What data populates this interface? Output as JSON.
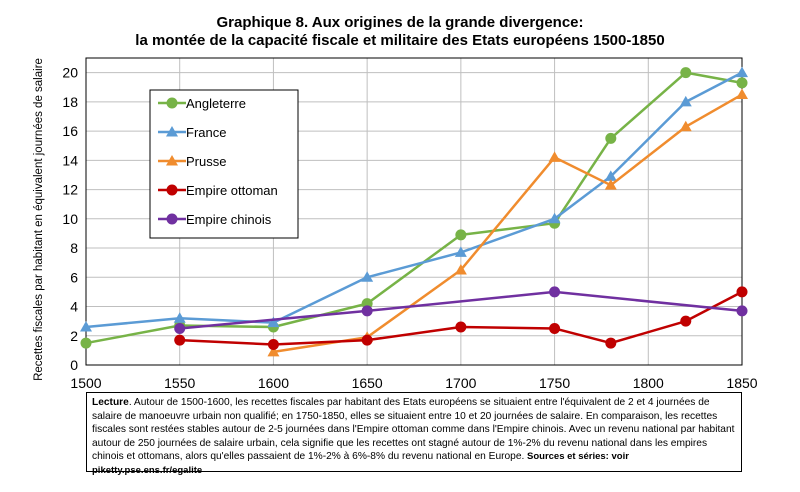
{
  "title_line1": "Graphique 8. Aux origines de la grande divergence:",
  "title_line2": "la montée de la capacité fiscale et militaire des Etats européens 1500-1850",
  "note": {
    "lead": "Lecture",
    "body": ". Autour de 1500-1600, les recettes fiscales par habitant des Etats européens se situaient entre l'équivalent de 2 et 4 journées de salaire de manoeuvre urbain non qualifié; en 1750-1850, elles se situaient entre 10 et 20 journées de salaire. En comparaison, les recettes fiscales sont restées stables autour de 2-5 journées dans l'Empire ottoman comme dans l'Empire chinois. Avec un revenu national par habitant autour de 250 journées de salaire urbain, cela signifie que les recettes ont stagné autour de 1%-2% du revenu national dans les empires chinois et ottomans, alors qu'elles passaient de 1%-2% à 6%-8% du revenu national en Europe.",
    "sources": " Sources et séries: voir piketty.pse.ens.fr/egalite"
  },
  "chart_data": {
    "type": "line",
    "ylabel": "Recettes fiscales par habitant en équivalent journées de salaire",
    "xlabel": "",
    "xlim": [
      1500,
      1850
    ],
    "ylim": [
      0,
      21
    ],
    "xticks": [
      1500,
      1550,
      1600,
      1650,
      1700,
      1750,
      1800,
      1850
    ],
    "yticks": [
      0,
      2,
      4,
      6,
      8,
      10,
      12,
      14,
      16,
      18,
      20
    ],
    "legend_position": "upper-left",
    "grid": true,
    "series": [
      {
        "name": "Angleterre",
        "color": "#77b347",
        "marker": "circle",
        "x": [
          1500,
          1550,
          1600,
          1650,
          1700,
          1750,
          1780,
          1820,
          1850
        ],
        "y": [
          1.5,
          2.7,
          2.6,
          4.2,
          8.9,
          9.7,
          15.5,
          20.0,
          19.3
        ]
      },
      {
        "name": "France",
        "color": "#5b9bd5",
        "marker": "triangle",
        "x": [
          1500,
          1550,
          1600,
          1650,
          1700,
          1750,
          1780,
          1820,
          1850
        ],
        "y": [
          2.6,
          3.2,
          2.9,
          6.0,
          7.7,
          10.0,
          12.9,
          18.0,
          20.0
        ]
      },
      {
        "name": "Prusse",
        "color": "#f08c2e",
        "marker": "triangle",
        "x": [
          1600,
          1650,
          1700,
          1750,
          1780,
          1820,
          1850
        ],
        "y": [
          0.9,
          1.9,
          6.5,
          14.2,
          12.3,
          16.3,
          18.5
        ]
      },
      {
        "name": "Empire ottoman",
        "color": "#c00000",
        "marker": "circle",
        "x": [
          1550,
          1600,
          1650,
          1700,
          1750,
          1780,
          1820,
          1850
        ],
        "y": [
          1.7,
          1.4,
          1.7,
          2.6,
          2.5,
          1.5,
          3.0,
          5.0
        ]
      },
      {
        "name": "Empire chinois",
        "color": "#7030a0",
        "marker": "circle",
        "x": [
          1550,
          1650,
          1750,
          1850
        ],
        "y": [
          2.5,
          3.7,
          5.0,
          3.7
        ]
      }
    ]
  }
}
